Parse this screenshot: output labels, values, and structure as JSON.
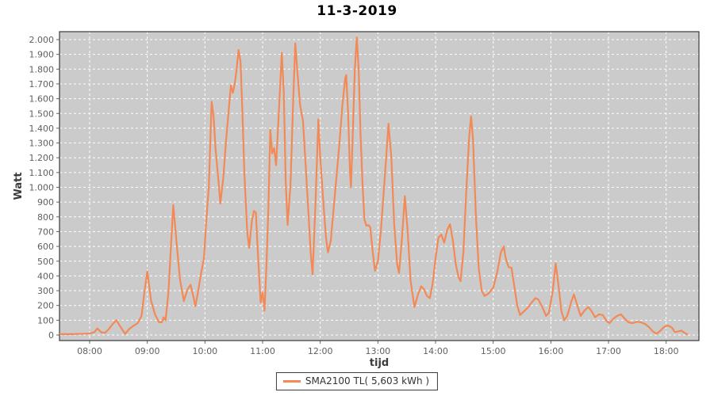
{
  "title": "11-3-2019",
  "axes": {
    "y_label": "Watt",
    "x_label": "tijd",
    "y_tick_labels": [
      "0",
      "100",
      "200",
      "300",
      "400",
      "500",
      "600",
      "700",
      "800",
      "900",
      "1.000",
      "1.100",
      "1.200",
      "1.300",
      "1.400",
      "1.500",
      "1.600",
      "1.700",
      "1.800",
      "1.900",
      "2.000"
    ],
    "x_tick_labels": [
      "08:00",
      "09:00",
      "10:00",
      "11:00",
      "12:00",
      "13:00",
      "14:00",
      "15:00",
      "16:00",
      "17:00",
      "18:00"
    ]
  },
  "legend": {
    "label": "SMA2100 TL( 5,603 kWh )"
  },
  "colors": {
    "line": "#f28957",
    "plot_bg": "#cbcbcb",
    "grid": "#ffffff",
    "border": "#3a3a3a",
    "tick": "#666666",
    "tick_text": "#5f5f5f",
    "axis_label_text": "#3c3c3c",
    "title_text": "#000000"
  },
  "chart_data": {
    "type": "line",
    "title": "11-3-2019",
    "xlabel": "tijd",
    "ylabel": "Watt",
    "ylim": [
      0,
      2000
    ],
    "y_tick_step": 100,
    "xlim": [
      "07:29",
      "18:34"
    ],
    "x_ticks": [
      "08:00",
      "09:00",
      "10:00",
      "11:00",
      "12:00",
      "13:00",
      "14:00",
      "15:00",
      "16:00",
      "17:00",
      "18:00"
    ],
    "grid": true,
    "legend_position": "bottom",
    "series": [
      {
        "name": "SMA2100 TL( 5,603 kWh )",
        "color": "#f28957",
        "points": [
          [
            "07:29",
            6
          ],
          [
            "07:40",
            6
          ],
          [
            "07:52",
            8
          ],
          [
            "08:00",
            10
          ],
          [
            "08:05",
            20
          ],
          [
            "08:08",
            45
          ],
          [
            "08:12",
            18
          ],
          [
            "08:16",
            15
          ],
          [
            "08:20",
            40
          ],
          [
            "08:24",
            75
          ],
          [
            "08:28",
            100
          ],
          [
            "08:32",
            55
          ],
          [
            "08:37",
            8
          ],
          [
            "08:41",
            40
          ],
          [
            "08:45",
            60
          ],
          [
            "08:50",
            80
          ],
          [
            "08:54",
            130
          ],
          [
            "08:57",
            290
          ],
          [
            "09:00",
            430
          ],
          [
            "09:04",
            230
          ],
          [
            "09:08",
            140
          ],
          [
            "09:12",
            88
          ],
          [
            "09:15",
            85
          ],
          [
            "09:17",
            120
          ],
          [
            "09:19",
            100
          ],
          [
            "09:22",
            290
          ],
          [
            "09:25",
            640
          ],
          [
            "09:27",
            880
          ],
          [
            "09:30",
            660
          ],
          [
            "09:34",
            380
          ],
          [
            "09:38",
            230
          ],
          [
            "09:42",
            310
          ],
          [
            "09:45",
            340
          ],
          [
            "09:48",
            260
          ],
          [
            "09:50",
            195
          ],
          [
            "09:53",
            300
          ],
          [
            "09:56",
            420
          ],
          [
            "09:59",
            520
          ],
          [
            "10:01",
            740
          ],
          [
            "10:04",
            1000
          ],
          [
            "10:07",
            1580
          ],
          [
            "10:09",
            1480
          ],
          [
            "10:11",
            1260
          ],
          [
            "10:14",
            1050
          ],
          [
            "10:16",
            890
          ],
          [
            "10:19",
            1060
          ],
          [
            "10:22",
            1320
          ],
          [
            "10:25",
            1540
          ],
          [
            "10:27",
            1690
          ],
          [
            "10:29",
            1640
          ],
          [
            "10:31",
            1700
          ],
          [
            "10:33",
            1800
          ],
          [
            "10:35",
            1930
          ],
          [
            "10:37",
            1850
          ],
          [
            "10:39",
            1500
          ],
          [
            "10:41",
            1100
          ],
          [
            "10:44",
            700
          ],
          [
            "10:46",
            590
          ],
          [
            "10:49",
            780
          ],
          [
            "10:51",
            840
          ],
          [
            "10:53",
            830
          ],
          [
            "10:55",
            560
          ],
          [
            "10:58",
            220
          ],
          [
            "11:00",
            285
          ],
          [
            "11:02",
            165
          ],
          [
            "11:04",
            480
          ],
          [
            "11:06",
            860
          ],
          [
            "11:08",
            1390
          ],
          [
            "11:10",
            1230
          ],
          [
            "11:12",
            1265
          ],
          [
            "11:14",
            1150
          ],
          [
            "11:17",
            1520
          ],
          [
            "11:20",
            1910
          ],
          [
            "11:22",
            1640
          ],
          [
            "11:24",
            1050
          ],
          [
            "11:26",
            745
          ],
          [
            "11:29",
            1010
          ],
          [
            "11:32",
            1620
          ],
          [
            "11:34",
            1975
          ],
          [
            "11:36",
            1800
          ],
          [
            "11:39",
            1560
          ],
          [
            "11:42",
            1450
          ],
          [
            "11:45",
            1130
          ],
          [
            "11:48",
            800
          ],
          [
            "11:50",
            560
          ],
          [
            "11:52",
            410
          ],
          [
            "11:55",
            880
          ],
          [
            "11:58",
            1460
          ],
          [
            "12:00",
            1200
          ],
          [
            "12:03",
            920
          ],
          [
            "12:06",
            660
          ],
          [
            "12:08",
            560
          ],
          [
            "12:11",
            640
          ],
          [
            "12:14",
            860
          ],
          [
            "12:17",
            1080
          ],
          [
            "12:20",
            1300
          ],
          [
            "12:23",
            1550
          ],
          [
            "12:26",
            1740
          ],
          [
            "12:27",
            1760
          ],
          [
            "12:29",
            1500
          ],
          [
            "12:31",
            1100
          ],
          [
            "12:32",
            1000
          ],
          [
            "12:34",
            1400
          ],
          [
            "12:36",
            1800
          ],
          [
            "12:38",
            2015
          ],
          [
            "12:40",
            1800
          ],
          [
            "12:42",
            1350
          ],
          [
            "12:44",
            1020
          ],
          [
            "12:46",
            780
          ],
          [
            "12:48",
            740
          ],
          [
            "12:50",
            745
          ],
          [
            "12:52",
            730
          ],
          [
            "12:55",
            540
          ],
          [
            "12:57",
            435
          ],
          [
            "13:00",
            500
          ],
          [
            "13:03",
            700
          ],
          [
            "13:07",
            1050
          ],
          [
            "13:11",
            1430
          ],
          [
            "13:14",
            1200
          ],
          [
            "13:17",
            750
          ],
          [
            "13:20",
            480
          ],
          [
            "13:22",
            420
          ],
          [
            "13:25",
            650
          ],
          [
            "13:28",
            940
          ],
          [
            "13:31",
            700
          ],
          [
            "13:34",
            370
          ],
          [
            "13:38",
            190
          ],
          [
            "13:42",
            280
          ],
          [
            "13:45",
            330
          ],
          [
            "13:48",
            310
          ],
          [
            "13:51",
            265
          ],
          [
            "13:54",
            250
          ],
          [
            "13:57",
            350
          ],
          [
            "14:00",
            520
          ],
          [
            "14:03",
            660
          ],
          [
            "14:06",
            680
          ],
          [
            "14:09",
            625
          ],
          [
            "14:12",
            710
          ],
          [
            "14:15",
            750
          ],
          [
            "14:18",
            640
          ],
          [
            "14:21",
            480
          ],
          [
            "14:24",
            390
          ],
          [
            "14:26",
            365
          ],
          [
            "14:29",
            560
          ],
          [
            "14:32",
            980
          ],
          [
            "14:35",
            1340
          ],
          [
            "14:37",
            1480
          ],
          [
            "14:39",
            1320
          ],
          [
            "14:42",
            800
          ],
          [
            "14:45",
            450
          ],
          [
            "14:48",
            300
          ],
          [
            "14:51",
            265
          ],
          [
            "14:55",
            280
          ],
          [
            "15:00",
            320
          ],
          [
            "15:04",
            420
          ],
          [
            "15:08",
            560
          ],
          [
            "15:11",
            600
          ],
          [
            "15:13",
            520
          ],
          [
            "15:16",
            460
          ],
          [
            "15:19",
            455
          ],
          [
            "15:22",
            330
          ],
          [
            "15:25",
            200
          ],
          [
            "15:28",
            135
          ],
          [
            "15:32",
            160
          ],
          [
            "15:36",
            185
          ],
          [
            "15:40",
            220
          ],
          [
            "15:44",
            250
          ],
          [
            "15:47",
            240
          ],
          [
            "15:51",
            190
          ],
          [
            "15:55",
            130
          ],
          [
            "15:58",
            150
          ],
          [
            "16:02",
            300
          ],
          [
            "16:05",
            485
          ],
          [
            "16:08",
            330
          ],
          [
            "16:11",
            160
          ],
          [
            "16:14",
            100
          ],
          [
            "16:17",
            130
          ],
          [
            "16:21",
            220
          ],
          [
            "16:24",
            275
          ],
          [
            "16:28",
            190
          ],
          [
            "16:31",
            130
          ],
          [
            "16:35",
            165
          ],
          [
            "16:39",
            190
          ],
          [
            "16:42",
            165
          ],
          [
            "16:46",
            120
          ],
          [
            "16:50",
            140
          ],
          [
            "16:54",
            135
          ],
          [
            "16:58",
            95
          ],
          [
            "17:01",
            80
          ],
          [
            "17:05",
            110
          ],
          [
            "17:09",
            130
          ],
          [
            "17:13",
            140
          ],
          [
            "17:17",
            110
          ],
          [
            "17:21",
            85
          ],
          [
            "17:25",
            80
          ],
          [
            "17:30",
            90
          ],
          [
            "17:34",
            85
          ],
          [
            "17:38",
            75
          ],
          [
            "17:42",
            55
          ],
          [
            "17:46",
            25
          ],
          [
            "17:50",
            8
          ],
          [
            "17:54",
            30
          ],
          [
            "17:58",
            55
          ],
          [
            "18:02",
            65
          ],
          [
            "18:06",
            50
          ],
          [
            "18:09",
            20
          ],
          [
            "18:13",
            25
          ],
          [
            "18:16",
            30
          ],
          [
            "18:19",
            15
          ],
          [
            "18:22",
            5
          ]
        ]
      }
    ]
  }
}
